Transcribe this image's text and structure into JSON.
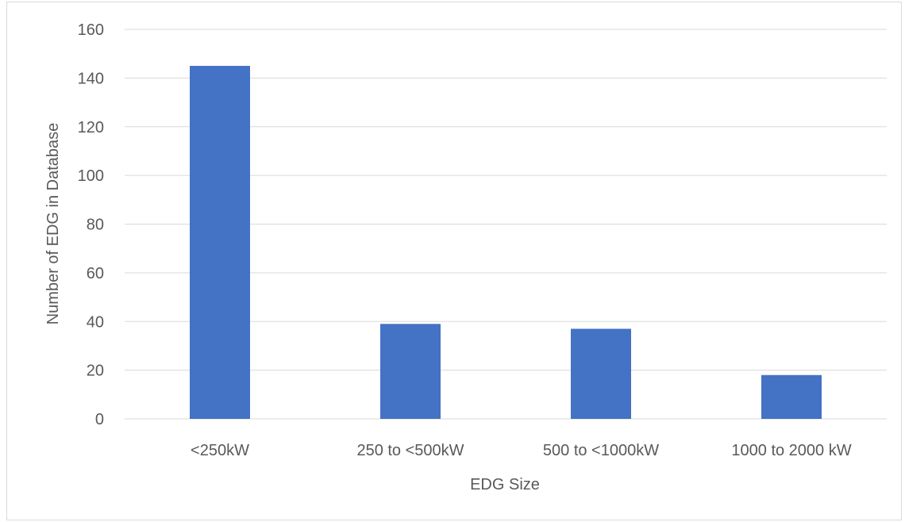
{
  "chart_data": {
    "type": "bar",
    "title": "",
    "xlabel": "EDG Size",
    "ylabel": "Number of EDG in Database",
    "categories": [
      "<250kW",
      "250 to <500kW",
      "500 to <1000kW",
      "1000 to 2000 kW"
    ],
    "values": [
      145,
      39,
      37,
      18
    ],
    "ylim": [
      0,
      160
    ],
    "yticks": [
      "0",
      "20",
      "40",
      "60",
      "80",
      "100",
      "120",
      "140",
      "160"
    ],
    "grid": "horizontal",
    "legend": "none",
    "bar_color": "#4472C4"
  }
}
